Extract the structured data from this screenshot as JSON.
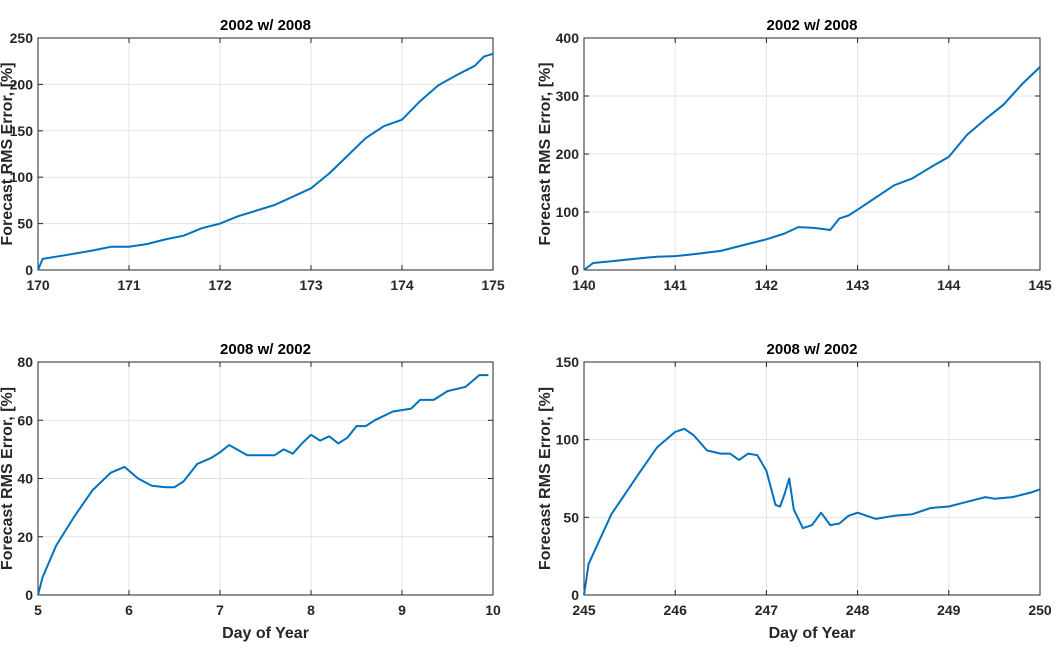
{
  "chart_data": [
    {
      "type": "line",
      "title": "2002 w/ 2008",
      "xlabel": "",
      "ylabel": "Forecast RMS Error, [%]",
      "xlim": [
        170,
        175
      ],
      "ylim": [
        0,
        250
      ],
      "xticks": [
        170,
        171,
        172,
        173,
        174,
        175
      ],
      "yticks": [
        0,
        50,
        100,
        150,
        200,
        250
      ],
      "grid": true,
      "series_color": "#0072bd",
      "x": [
        170.0,
        170.05,
        170.3,
        170.6,
        170.8,
        171.0,
        171.2,
        171.4,
        171.6,
        171.8,
        172.0,
        172.2,
        172.4,
        172.6,
        172.8,
        173.0,
        173.2,
        173.4,
        173.6,
        173.8,
        174.0,
        174.2,
        174.4,
        174.6,
        174.8,
        174.9,
        175.0
      ],
      "y": [
        0,
        12,
        16,
        21,
        25,
        25,
        28,
        33,
        37,
        45,
        50,
        58,
        64,
        70,
        79,
        88,
        104,
        123,
        142,
        155,
        162,
        182,
        199,
        210,
        220,
        230,
        233
      ]
    },
    {
      "type": "line",
      "title": "2002 w/ 2008",
      "xlabel": "",
      "ylabel": "Forecast RMS Error, [%]",
      "xlim": [
        140,
        145
      ],
      "ylim": [
        0,
        400
      ],
      "xticks": [
        140,
        141,
        142,
        143,
        144,
        145
      ],
      "yticks": [
        0,
        100,
        200,
        300,
        400
      ],
      "grid": true,
      "series_color": "#0072bd",
      "x": [
        140.0,
        140.1,
        140.3,
        140.6,
        140.8,
        141.0,
        141.2,
        141.5,
        141.8,
        142.0,
        142.2,
        142.35,
        142.5,
        142.6,
        142.7,
        142.8,
        142.9,
        143.0,
        143.2,
        143.4,
        143.6,
        143.8,
        144.0,
        144.2,
        144.4,
        144.6,
        144.8,
        145.0
      ],
      "y": [
        0,
        12,
        15,
        20,
        23,
        24,
        27,
        33,
        45,
        53,
        63,
        74,
        73,
        71,
        69,
        89,
        94,
        104,
        125,
        146,
        158,
        177,
        195,
        233,
        260,
        285,
        320,
        350
      ]
    },
    {
      "type": "line",
      "title": "2008 w/ 2002",
      "xlabel": "Day of Year",
      "ylabel": "Forecast RMS Error, [%]",
      "xlim": [
        5,
        10
      ],
      "ylim": [
        0,
        80
      ],
      "xticks": [
        5,
        6,
        7,
        8,
        9,
        10
      ],
      "yticks": [
        0,
        20,
        40,
        60,
        80
      ],
      "grid": true,
      "series_color": "#0072bd",
      "x": [
        5.0,
        5.05,
        5.2,
        5.4,
        5.6,
        5.8,
        5.95,
        6.1,
        6.25,
        6.4,
        6.5,
        6.6,
        6.75,
        6.9,
        7.0,
        7.1,
        7.3,
        7.5,
        7.6,
        7.7,
        7.8,
        7.9,
        8.0,
        8.1,
        8.2,
        8.3,
        8.4,
        8.5,
        8.6,
        8.7,
        8.9,
        9.0,
        9.1,
        9.2,
        9.35,
        9.5,
        9.7,
        9.85,
        9.95
      ],
      "y": [
        0,
        6,
        17,
        27,
        36,
        42,
        44,
        40,
        37.5,
        37,
        37,
        39,
        45,
        47,
        49,
        51.5,
        48,
        48,
        48,
        50,
        48.5,
        52,
        55,
        53,
        54.5,
        52,
        54,
        58,
        58,
        60,
        63,
        63.5,
        64,
        67,
        67,
        70,
        71.5,
        75.5,
        75.5
      ]
    },
    {
      "type": "line",
      "title": "2008 w/ 2002",
      "xlabel": "Day of Year",
      "ylabel": "Forecast RMS Error, [%]",
      "xlim": [
        245,
        250
      ],
      "ylim": [
        0,
        150
      ],
      "xticks": [
        245,
        246,
        247,
        248,
        249,
        250
      ],
      "yticks": [
        0,
        50,
        100,
        150
      ],
      "grid": true,
      "series_color": "#0072bd",
      "x": [
        245.0,
        245.05,
        245.3,
        245.6,
        245.8,
        246.0,
        246.1,
        246.2,
        246.35,
        246.5,
        246.6,
        246.7,
        246.8,
        246.9,
        247.0,
        247.1,
        247.15,
        247.2,
        247.25,
        247.3,
        247.4,
        247.5,
        247.6,
        247.7,
        247.8,
        247.9,
        248.0,
        248.2,
        248.4,
        248.6,
        248.8,
        249.0,
        249.2,
        249.4,
        249.5,
        249.7,
        249.9,
        250.0
      ],
      "y": [
        0,
        20,
        52,
        78,
        95,
        105,
        107,
        103,
        93,
        91,
        91,
        87,
        91,
        90,
        80,
        58,
        57,
        65,
        75,
        55,
        43,
        45,
        53,
        45,
        46,
        51,
        53,
        49,
        51,
        52,
        56,
        57,
        60,
        63,
        62,
        63,
        66,
        68
      ]
    }
  ]
}
